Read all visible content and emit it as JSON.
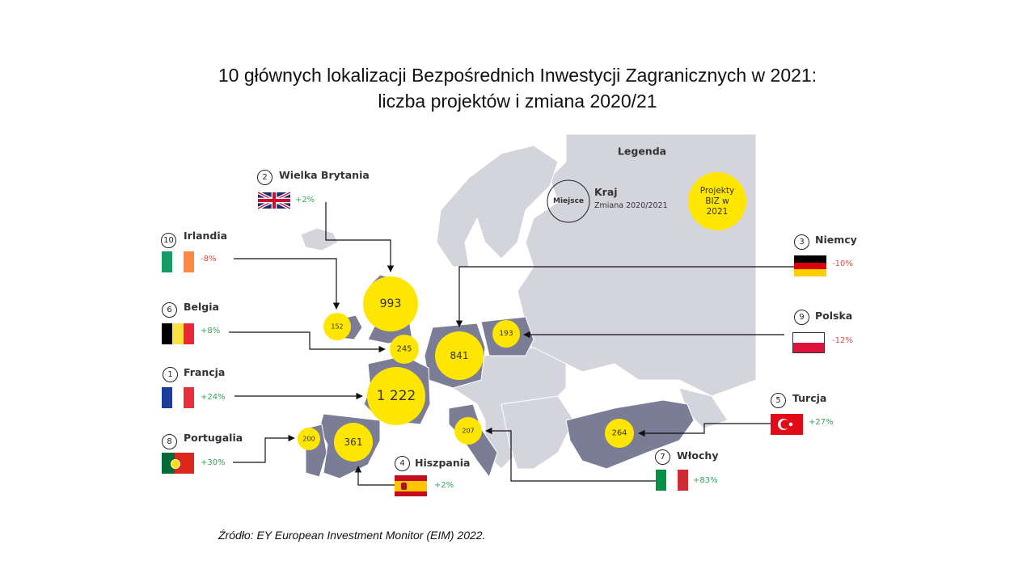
{
  "title": {
    "line1": "10 głównych lokalizacji Bezpośrednich Inwestycji Zagranicznych w 2021:",
    "line2": "liczba projektów i zmiana 2020/21"
  },
  "legend": {
    "heading": "Legenda",
    "circle_label": "Miejsce",
    "country_label": "Kraj",
    "change_label": "Zmiana 2020/2021",
    "bubble_label": "Projekty BIZ w 2021"
  },
  "colors": {
    "bubble": "#ffe600",
    "highlight_country": "#7b7c96",
    "land": "#d4d5dc",
    "positive": "#3aa35a",
    "negative": "#e04848"
  },
  "countries": [
    {
      "rank": "1",
      "name": "Francja",
      "change": "+24%",
      "projects": "1 222",
      "flag": "france"
    },
    {
      "rank": "2",
      "name": "Wielka Brytania",
      "change": "+2%",
      "projects": "993",
      "flag": "uk"
    },
    {
      "rank": "3",
      "name": "Niemcy",
      "change": "-10%",
      "projects": "841",
      "flag": "germany"
    },
    {
      "rank": "4",
      "name": "Hiszpania",
      "change": "+2%",
      "projects": "361",
      "flag": "spain"
    },
    {
      "rank": "5",
      "name": "Turcja",
      "change": "+27%",
      "projects": "264",
      "flag": "turkey"
    },
    {
      "rank": "6",
      "name": "Belgia",
      "change": "+8%",
      "projects": "245",
      "flag": "belgium"
    },
    {
      "rank": "7",
      "name": "Włochy",
      "change": "+83%",
      "projects": "207",
      "flag": "italy"
    },
    {
      "rank": "8",
      "name": "Portugalia",
      "change": "+30%",
      "projects": "200",
      "flag": "portugal"
    },
    {
      "rank": "9",
      "name": "Polska",
      "change": "-12%",
      "projects": "193",
      "flag": "poland"
    },
    {
      "rank": "10",
      "name": "Irlandia",
      "change": "-8%",
      "projects": "152",
      "flag": "ireland"
    }
  ],
  "source": "Źródło: EY European Investment Monitor (EIM) 2022."
}
